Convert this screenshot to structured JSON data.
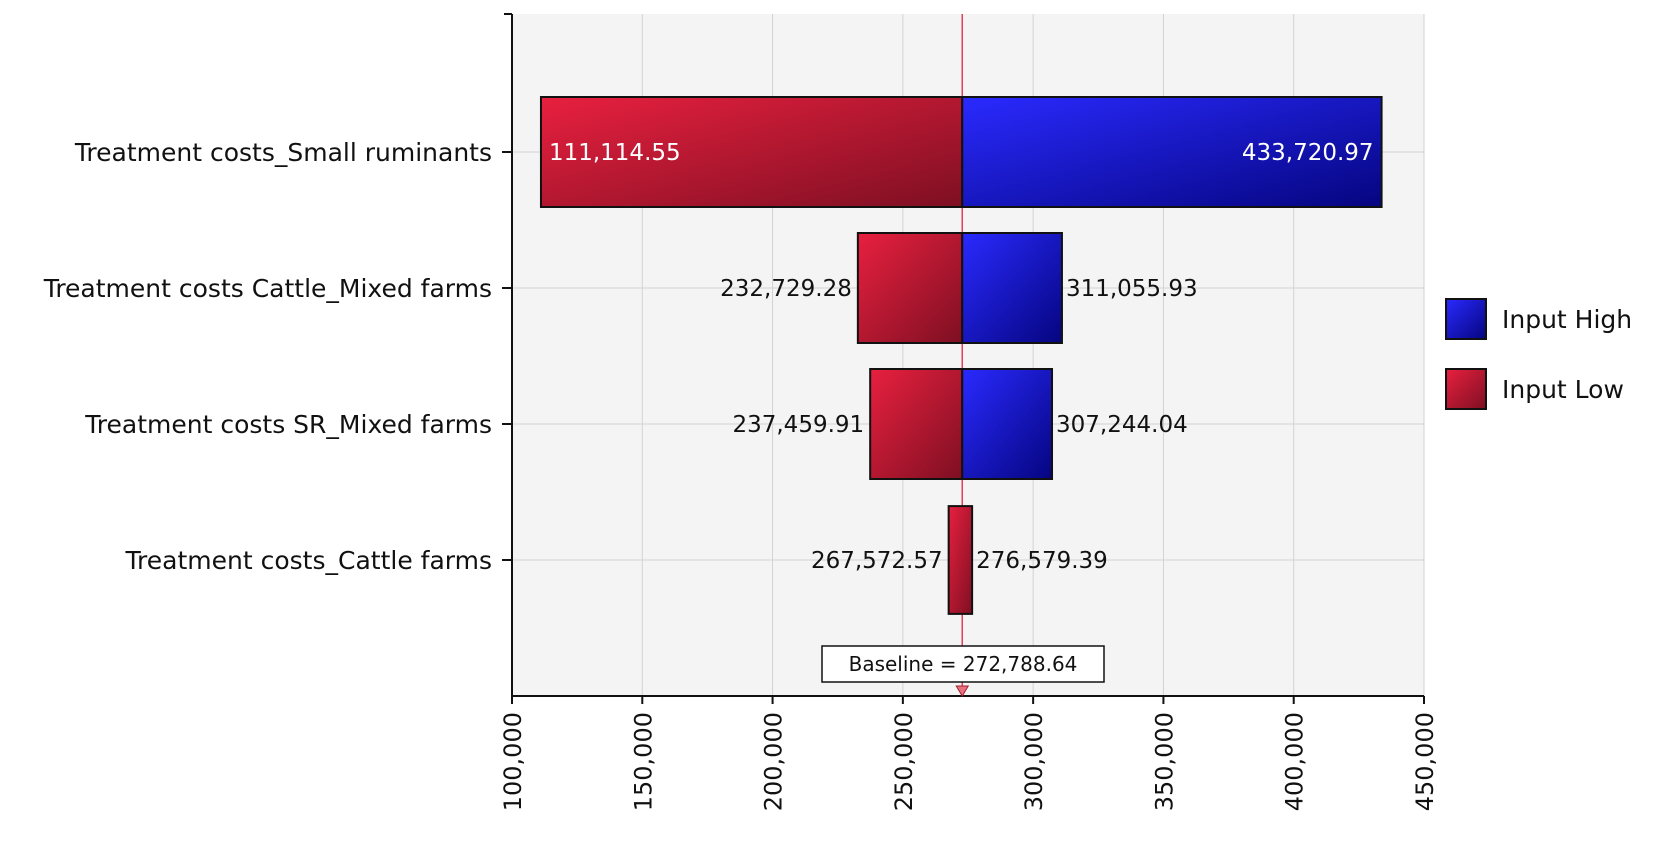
{
  "chart_data": {
    "type": "bar",
    "subtype": "tornado",
    "categories": [
      "Treatment costs_Small ruminants",
      "Treatment costs Cattle_Mixed farms",
      "Treatment costs SR_Mixed farms",
      "Treatment costs_Cattle farms"
    ],
    "series": [
      {
        "name": "Input High",
        "color": "#1a1ad6",
        "values": [
          433720.97,
          311055.93,
          307244.04,
          276579.39
        ],
        "labels": [
          "433,720.97",
          "311,055.93",
          "307,244.04",
          "276,579.39"
        ]
      },
      {
        "name": "Input Low",
        "color": "#c8203a",
        "values": [
          111114.55,
          232729.28,
          237459.91,
          267572.57
        ],
        "labels": [
          "111,114.55",
          "232,729.28",
          "237,459.91",
          "267,572.57"
        ]
      }
    ],
    "baseline": {
      "value": 272788.64,
      "label": "Baseline = 272,788.64"
    },
    "x_ticks": [
      100000,
      150000,
      200000,
      250000,
      300000,
      350000,
      400000,
      450000
    ],
    "x_tick_labels": [
      "100,000",
      "150,000",
      "200,000",
      "250,000",
      "300,000",
      "350,000",
      "400,000",
      "450,000"
    ],
    "xlim": [
      100000,
      450000
    ],
    "grid": true,
    "legend_position": "right",
    "xlabel": "",
    "ylabel": "",
    "title": ""
  }
}
